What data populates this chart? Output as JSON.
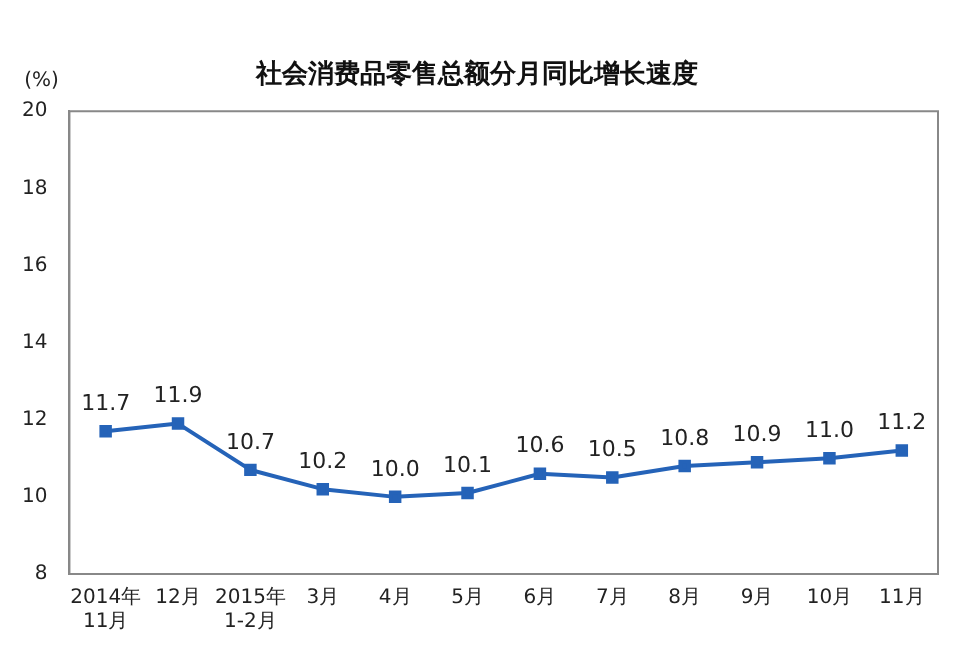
{
  "chart_data": {
    "type": "line",
    "title": "社会消费品零售总额分月同比增长速度",
    "ylabel": "(%)",
    "categories": [
      "2014年\n11月",
      "12月",
      "2015年\n1-2月",
      "3月",
      "4月",
      "5月",
      "6月",
      "7月",
      "8月",
      "9月",
      "10月",
      "11月"
    ],
    "series": [
      {
        "color": "#2563b8",
        "values": [
          11.7,
          11.9,
          10.7,
          10.2,
          10.0,
          10.1,
          10.6,
          10.5,
          10.8,
          10.9,
          11.0,
          11.2
        ],
        "value_labels": [
          "11.7",
          "11.9",
          "10.7",
          "10.2",
          "10.0",
          "10.1",
          "10.6",
          "10.5",
          "10.8",
          "10.9",
          "11.0",
          "11.2"
        ]
      }
    ],
    "ylim": [
      8,
      20
    ],
    "yticks": [
      8,
      10,
      12,
      14,
      16,
      18,
      20
    ],
    "grid": false,
    "legend": false,
    "marker": "square",
    "line_style": "solid"
  }
}
